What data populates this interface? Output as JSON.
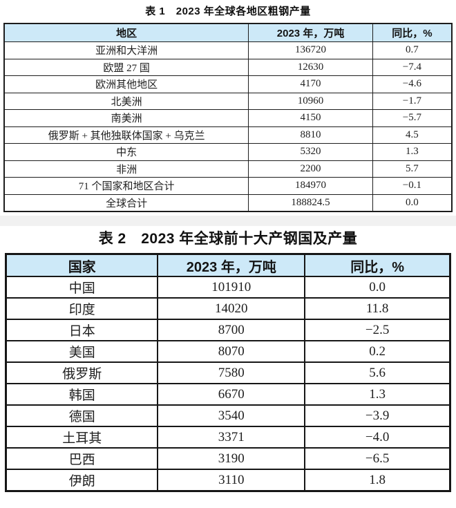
{
  "page": {
    "background_color": "#ffffff",
    "header_fill_color": "#cde9f8",
    "border_color": "#1c1c1c"
  },
  "table1": {
    "title": "表 1　2023 年全球各地区粗钢产量",
    "columns": [
      "地区",
      "2023 年，万吨",
      "同比，%"
    ],
    "rows": [
      [
        "亚洲和大洋洲",
        "136720",
        "0.7"
      ],
      [
        "欧盟 27 国",
        "12630",
        "−7.4"
      ],
      [
        "欧洲其他地区",
        "4170",
        "−4.6"
      ],
      [
        "北美洲",
        "10960",
        "−1.7"
      ],
      [
        "南美洲",
        "4150",
        "−5.7"
      ],
      [
        "俄罗斯 + 其他独联体国家 + 乌克兰",
        "8810",
        "4.5"
      ],
      [
        "中东",
        "5320",
        "1.3"
      ],
      [
        "非洲",
        "2200",
        "5.7"
      ],
      [
        "71 个国家和地区合计",
        "184970",
        "−0.1"
      ],
      [
        "全球合计",
        "188824.5",
        "0.0"
      ]
    ]
  },
  "table2": {
    "title": "表 2　2023 年全球前十大产钢国及产量",
    "columns": [
      "国家",
      "2023 年，万吨",
      "同比，%"
    ],
    "rows": [
      [
        "中国",
        "101910",
        "0.0"
      ],
      [
        "印度",
        "14020",
        "11.8"
      ],
      [
        "日本",
        "8700",
        "−2.5"
      ],
      [
        "美国",
        "8070",
        "0.2"
      ],
      [
        "俄罗斯",
        "7580",
        "5.6"
      ],
      [
        "韩国",
        "6670",
        "1.3"
      ],
      [
        "德国",
        "3540",
        "−3.9"
      ],
      [
        "土耳其",
        "3371",
        "−4.0"
      ],
      [
        "巴西",
        "3190",
        "−6.5"
      ],
      [
        "伊朗",
        "3110",
        "1.8"
      ]
    ]
  }
}
